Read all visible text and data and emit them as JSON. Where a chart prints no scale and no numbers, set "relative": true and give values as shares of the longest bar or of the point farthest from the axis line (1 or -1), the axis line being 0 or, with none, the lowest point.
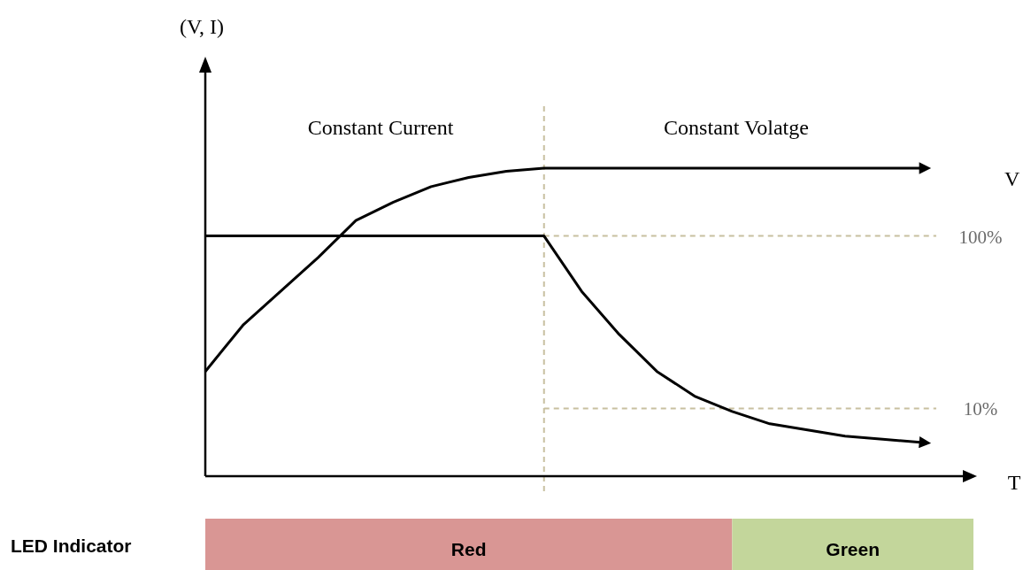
{
  "chart_data": {
    "type": "line",
    "relative": true,
    "xlabel": "T",
    "categories": [
      null,
      null,
      null,
      null,
      null,
      null,
      null,
      null,
      null,
      null,
      null,
      null,
      null,
      null,
      null,
      null,
      null,
      null,
      null,
      null
    ],
    "series": [
      {
        "name": "V",
        "color": "#000000",
        "values": [
          0.34,
          0.49,
          0.6,
          0.71,
          0.83,
          0.89,
          0.94,
          0.97,
          0.99,
          1,
          1,
          1,
          1,
          1,
          1,
          1,
          1,
          1,
          1,
          1
        ]
      },
      {
        "color": "#000000",
        "values": [
          0.78,
          0.78,
          0.78,
          0.78,
          0.78,
          0.78,
          0.78,
          0.78,
          0.78,
          0.78,
          0.6,
          0.46,
          0.34,
          0.26,
          0.21,
          0.17,
          0.15,
          0.13,
          0.12,
          0.11
        ]
      }
    ],
    "ref_lines": [
      {
        "axis": "y",
        "value": 0.78,
        "color": "#c8c0a0",
        "line_style": "dashed"
      },
      {
        "axis": "y",
        "value": 0.22,
        "color": "#c8c0a0",
        "line_style": "dashed"
      }
    ],
    "annotations": [
      "(V, I)",
      "Constant Current",
      "Constant Volatge",
      "100%",
      "10%",
      "LED Indicator",
      "Red",
      "Green"
    ],
    "line_style": "solid",
    "marker": "none"
  }
}
